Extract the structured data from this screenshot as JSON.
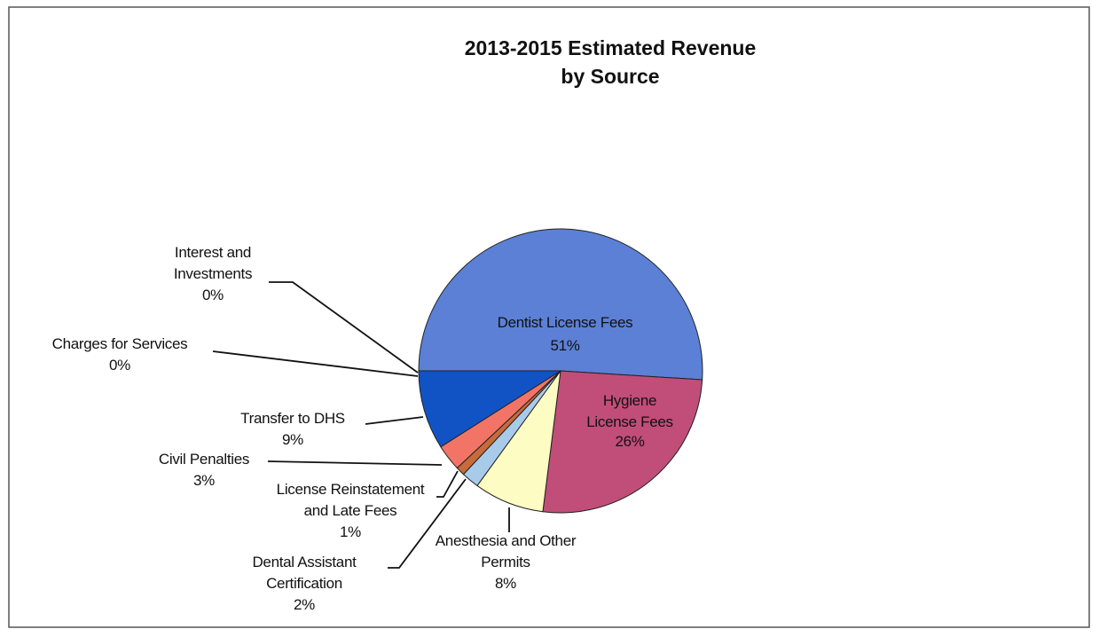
{
  "chart_data": {
    "type": "pie",
    "title": "2013-2015 Estimated Revenue by Source",
    "categories": [
      "Dentist License Fees",
      "Hygiene License Fees",
      "Anesthesia and Other Permits",
      "Dental Assistant Certification",
      "License Reinstatement and Late Fees",
      "Civil Penalties",
      "Transfer to DHS",
      "Charges for Services",
      "Interest and Investments"
    ],
    "values": [
      51,
      26,
      8,
      2,
      1,
      3,
      9,
      0,
      0
    ],
    "value_labels": [
      "51%",
      "26%",
      "8%",
      "2%",
      "1%",
      "3%",
      "9%",
      "0%",
      "0%"
    ],
    "colors": [
      "#5b80d6",
      "#c14d79",
      "#fdfcc2",
      "#a9cbea",
      "#c86a3a",
      "#f27466",
      "#1153c4",
      "#2c2f7a",
      "#3a3a3a"
    ]
  }
}
